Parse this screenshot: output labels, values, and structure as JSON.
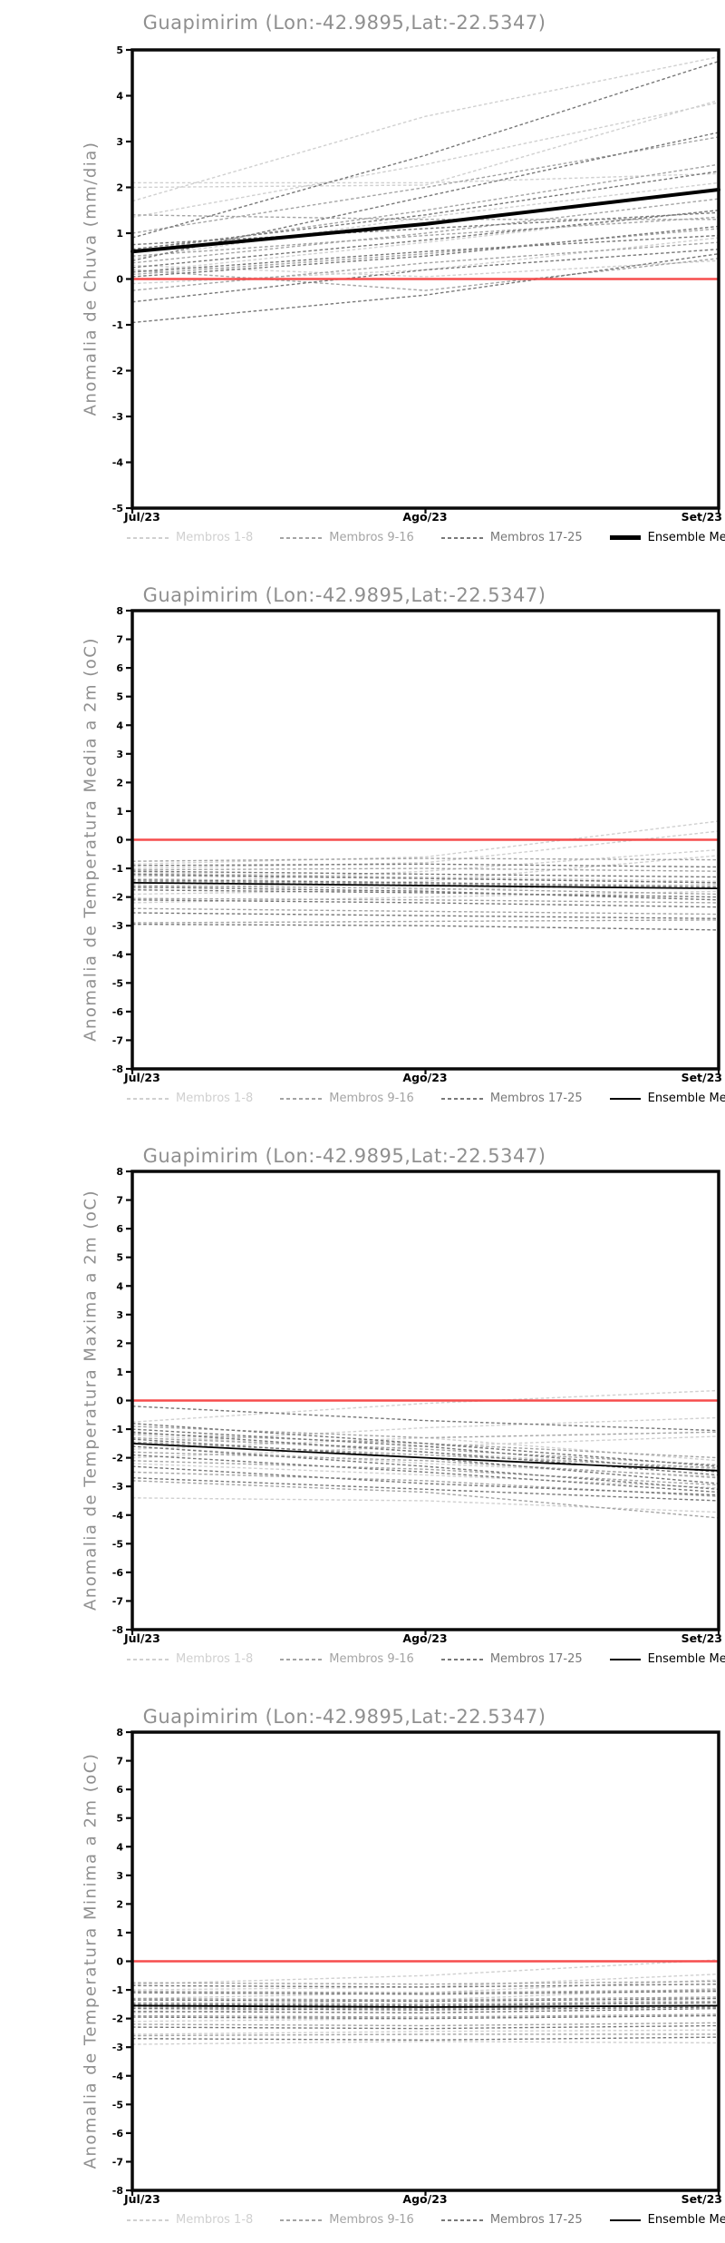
{
  "colors": {
    "members_1_8": "#d0d0d0",
    "members_9_16": "#a4a4a4",
    "members_17_25": "#787878",
    "ensemble_mean": "#000000",
    "zero_line": "#f64d4d",
    "axis": "#0a0a0a",
    "title_gray": "#8f8f8f"
  },
  "legend": {
    "items": [
      {
        "label": "Membros 1-8",
        "color_key": "members_1_8",
        "style": "dashed"
      },
      {
        "label": "Membros 9-16",
        "color_key": "members_9_16",
        "style": "dashed"
      },
      {
        "label": "Membros 17-25",
        "color_key": "members_17_25",
        "style": "dashed"
      },
      {
        "label": "Ensemble Mean",
        "color_key": "ensemble_mean",
        "style": "solid"
      }
    ]
  },
  "chart_data": [
    {
      "type": "line",
      "title": "Guapimirim (Lon:-42.9895,Lat:-22.5347)",
      "ylabel": "Anomalia de Chuva (mm/dia)",
      "xlabel": "",
      "ylim": [
        -5,
        5
      ],
      "yticks": [
        5,
        4,
        3,
        2,
        1,
        0,
        -1,
        -2,
        -3,
        -4,
        -5
      ],
      "x_labels": [
        "Jul/23",
        "Ago/23",
        "Set/23"
      ],
      "grid": false,
      "legend_position": "bottom",
      "zero_line_value": 0,
      "mean_width": 4,
      "groups": [
        {
          "name": "Membros 1-8",
          "color_key": "members_1_8",
          "dashed": true,
          "lines": [
            [
              2.1,
              2.1,
              2.3
            ],
            [
              1.7,
              3.55,
              4.85
            ],
            [
              1.35,
              2.5,
              3.85
            ],
            [
              2.0,
              2.05,
              3.9
            ],
            [
              0.45,
              1.35,
              2.1
            ],
            [
              0.15,
              0.8,
              1.5
            ],
            [
              -0.1,
              0.2,
              0.9
            ],
            [
              0.3,
              0.05,
              0.4
            ]
          ]
        },
        {
          "name": "Membros 9-16",
          "color_key": "members_9_16",
          "dashed": true,
          "lines": [
            [
              1.0,
              2.0,
              3.1
            ],
            [
              0.6,
              1.5,
              2.5
            ],
            [
              0.35,
              1.0,
              1.75
            ],
            [
              0.1,
              0.55,
              1.1
            ],
            [
              -0.25,
              0.35,
              0.8
            ],
            [
              0.5,
              0.95,
              1.35
            ],
            [
              1.4,
              1.3,
              1.3
            ],
            [
              0.2,
              -0.25,
              0.45
            ]
          ]
        },
        {
          "name": "Membros 17-25",
          "color_key": "members_17_25",
          "dashed": true,
          "lines": [
            [
              0.9,
              2.7,
              4.75
            ],
            [
              0.4,
              1.8,
              3.2
            ],
            [
              0.65,
              1.4,
              2.35
            ],
            [
              0.25,
              0.85,
              1.5
            ],
            [
              0.05,
              0.5,
              1.15
            ],
            [
              -0.5,
              0.2,
              0.65
            ],
            [
              -0.95,
              -0.35,
              0.55
            ],
            [
              0.75,
              1.1,
              1.45
            ],
            [
              0.15,
              0.6,
              0.95
            ]
          ]
        },
        {
          "name": "Ensemble Mean",
          "color_key": "ensemble_mean",
          "dashed": false,
          "role": "mean",
          "lines": [
            [
              0.6,
              1.2,
              1.95
            ]
          ]
        }
      ]
    },
    {
      "type": "line",
      "title": "Guapimirim (Lon:-42.9895,Lat:-22.5347)",
      "ylabel": "Anomalia de Temperatura Media a 2m (oC)",
      "xlabel": "",
      "ylim": [
        -8,
        8
      ],
      "yticks": [
        8,
        7,
        6,
        5,
        4,
        3,
        2,
        1,
        0,
        -1,
        -2,
        -3,
        -4,
        -5,
        -6,
        -7,
        -8
      ],
      "x_labels": [
        "Jul/23",
        "Ago/23",
        "Set/23"
      ],
      "grid": false,
      "legend_position": "bottom",
      "zero_line_value": 0,
      "mean_width": 1.8,
      "groups": [
        {
          "name": "Membros 1-8",
          "color_key": "members_1_8",
          "dashed": true,
          "lines": [
            [
              -0.85,
              -0.6,
              0.65
            ],
            [
              -1.0,
              -0.8,
              0.3
            ],
            [
              -1.55,
              -1.1,
              -0.35
            ],
            [
              -1.7,
              -1.45,
              -0.55
            ],
            [
              -1.15,
              -1.3,
              -1.45
            ],
            [
              -1.9,
              -1.75,
              -1.55
            ],
            [
              -2.2,
              -2.0,
              -1.8
            ],
            [
              -1.35,
              -1.5,
              -1.6
            ]
          ]
        },
        {
          "name": "Membros 9-16",
          "color_key": "members_9_16",
          "dashed": true,
          "lines": [
            [
              -0.75,
              -0.65,
              -0.7
            ],
            [
              -1.05,
              -1.0,
              -1.1
            ],
            [
              -1.25,
              -1.35,
              -1.5
            ],
            [
              -1.6,
              -1.7,
              -1.9
            ],
            [
              -2.05,
              -2.1,
              -2.2
            ],
            [
              -2.4,
              -2.5,
              -2.6
            ],
            [
              -2.9,
              -2.85,
              -2.8
            ],
            [
              -1.45,
              -1.55,
              -1.7
            ]
          ]
        },
        {
          "name": "Membros 17-25",
          "color_key": "members_17_25",
          "dashed": true,
          "lines": [
            [
              -0.9,
              -0.85,
              -0.95
            ],
            [
              -1.1,
              -1.2,
              -1.3
            ],
            [
              -1.4,
              -1.5,
              -1.65
            ],
            [
              -1.75,
              -1.85,
              -2.0
            ],
            [
              -2.1,
              -2.2,
              -2.35
            ],
            [
              -2.55,
              -2.65,
              -2.75
            ],
            [
              -2.95,
              -3.0,
              -3.15
            ],
            [
              -1.2,
              -1.35,
              -1.5
            ],
            [
              -1.65,
              -1.8,
              -2.1
            ]
          ]
        },
        {
          "name": "Ensemble Mean",
          "color_key": "ensemble_mean",
          "dashed": false,
          "role": "mean",
          "lines": [
            [
              -1.5,
              -1.6,
              -1.7
            ]
          ]
        }
      ]
    },
    {
      "type": "line",
      "title": "Guapimirim (Lon:-42.9895,Lat:-22.5347)",
      "ylabel": "Anomalia de Temperatura Maxima a 2m (oC)",
      "xlabel": "",
      "ylim": [
        -8,
        8
      ],
      "yticks": [
        8,
        7,
        6,
        5,
        4,
        3,
        2,
        1,
        0,
        -1,
        -2,
        -3,
        -4,
        -5,
        -6,
        -7,
        -8
      ],
      "x_labels": [
        "Jul/23",
        "Ago/23",
        "Set/23"
      ],
      "grid": false,
      "legend_position": "bottom",
      "zero_line_value": 0,
      "mean_width": 1.8,
      "groups": [
        {
          "name": "Membros 1-8",
          "color_key": "members_1_8",
          "dashed": true,
          "lines": [
            [
              -0.75,
              -0.1,
              0.35
            ],
            [
              -1.5,
              -0.95,
              -0.6
            ],
            [
              -1.7,
              -1.3,
              -2.1
            ],
            [
              -2.0,
              -1.6,
              -1.25
            ],
            [
              -1.2,
              -1.8,
              -2.4
            ],
            [
              -2.2,
              -2.6,
              -3.05
            ],
            [
              -3.4,
              -3.5,
              -3.9
            ],
            [
              -1.6,
              -2.2,
              -2.65
            ]
          ]
        },
        {
          "name": "Membros 9-16",
          "color_key": "members_9_16",
          "dashed": true,
          "lines": [
            [
              -0.9,
              -1.3,
              -1.1
            ],
            [
              -1.15,
              -1.5,
              -2.0
            ],
            [
              -1.45,
              -1.9,
              -2.35
            ],
            [
              -1.8,
              -2.1,
              -2.7
            ],
            [
              -2.1,
              -2.4,
              -2.95
            ],
            [
              -2.5,
              -2.8,
              -3.35
            ],
            [
              -2.8,
              -3.2,
              -4.1
            ],
            [
              -1.3,
              -1.7,
              -2.25
            ]
          ]
        },
        {
          "name": "Membros 17-25",
          "color_key": "members_17_25",
          "dashed": true,
          "lines": [
            [
              -0.2,
              -0.7,
              -1.05
            ],
            [
              -0.8,
              -1.5,
              -2.3
            ],
            [
              -1.0,
              -1.6,
              -2.5
            ],
            [
              -1.35,
              -2.0,
              -2.9
            ],
            [
              -1.6,
              -2.3,
              -3.1
            ],
            [
              -1.9,
              -2.5,
              -3.2
            ],
            [
              -2.3,
              -2.9,
              -3.3
            ],
            [
              -2.7,
              -3.1,
              -3.5
            ],
            [
              -1.1,
              -1.8,
              -2.6
            ]
          ]
        },
        {
          "name": "Ensemble Mean",
          "color_key": "ensemble_mean",
          "dashed": false,
          "role": "mean",
          "lines": [
            [
              -1.5,
              -2.0,
              -2.45
            ]
          ]
        }
      ]
    },
    {
      "type": "line",
      "title": "Guapimirim (Lon:-42.9895,Lat:-22.5347)",
      "ylabel": "Anomalia de Temperatura Minima a 2m (oC)",
      "xlabel": "",
      "ylim": [
        -8,
        8
      ],
      "yticks": [
        8,
        7,
        6,
        5,
        4,
        3,
        2,
        1,
        0,
        -1,
        -2,
        -3,
        -4,
        -5,
        -6,
        -7,
        -8
      ],
      "x_labels": [
        "Jul/23",
        "Ago/23",
        "Set/23"
      ],
      "grid": false,
      "legend_position": "bottom",
      "zero_line_value": 0,
      "mean_width": 1.8,
      "groups": [
        {
          "name": "Membros 1-8",
          "color_key": "members_1_8",
          "dashed": true,
          "lines": [
            [
              -0.8,
              -0.5,
              0.05
            ],
            [
              -1.0,
              -0.9,
              -0.45
            ],
            [
              -1.3,
              -1.1,
              -0.65
            ],
            [
              -1.55,
              -1.35,
              -0.95
            ],
            [
              -1.8,
              -1.6,
              -1.3
            ],
            [
              -2.1,
              -2.0,
              -1.9
            ],
            [
              -2.55,
              -2.45,
              -2.4
            ],
            [
              -2.9,
              -2.8,
              -2.85
            ]
          ]
        },
        {
          "name": "Membros 9-16",
          "color_key": "members_9_16",
          "dashed": true,
          "lines": [
            [
              -0.75,
              -0.8,
              -0.7
            ],
            [
              -1.05,
              -1.1,
              -1.0
            ],
            [
              -1.3,
              -1.35,
              -1.25
            ],
            [
              -1.6,
              -1.65,
              -1.55
            ],
            [
              -1.9,
              -1.95,
              -1.85
            ],
            [
              -2.2,
              -2.25,
              -2.15
            ],
            [
              -2.6,
              -2.55,
              -2.55
            ],
            [
              -1.45,
              -1.5,
              -1.4
            ]
          ]
        },
        {
          "name": "Membros 17-25",
          "color_key": "members_17_25",
          "dashed": true,
          "lines": [
            [
              -0.85,
              -0.9,
              -0.8
            ],
            [
              -1.1,
              -1.15,
              -1.05
            ],
            [
              -1.35,
              -1.4,
              -1.3
            ],
            [
              -1.65,
              -1.7,
              -1.6
            ],
            [
              -1.95,
              -2.0,
              -1.9
            ],
            [
              -2.3,
              -2.35,
              -2.25
            ],
            [
              -2.7,
              -2.75,
              -2.65
            ],
            [
              -1.5,
              -1.55,
              -1.45
            ],
            [
              -1.75,
              -1.8,
              -1.65
            ]
          ]
        },
        {
          "name": "Ensemble Mean",
          "color_key": "ensemble_mean",
          "dashed": false,
          "role": "mean",
          "lines": [
            [
              -1.55,
              -1.6,
              -1.55
            ]
          ]
        }
      ]
    }
  ]
}
